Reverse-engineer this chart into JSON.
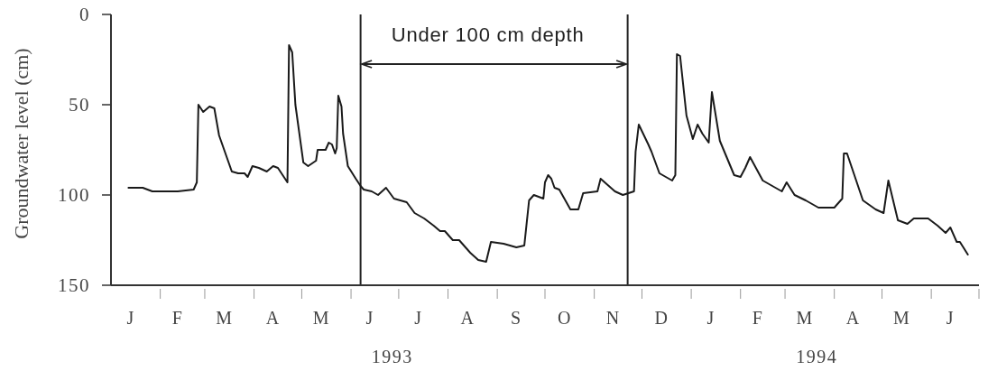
{
  "chart_data": {
    "type": "line",
    "ylabel": "Groundwater level (cm)",
    "x": [
      "1993-01-12",
      "1993-01-21",
      "1993-01-27",
      "1993-02-12",
      "1993-02-22",
      "1993-02-24",
      "1993-02-25",
      "1993-02-28",
      "1993-03-04",
      "1993-03-07",
      "1993-03-10",
      "1993-03-18",
      "1993-03-22",
      "1993-03-26",
      "1993-03-28",
      "1993-03-31",
      "1993-04-04",
      "1993-04-09",
      "1993-04-13",
      "1993-04-16",
      "1993-04-22",
      "1993-04-23",
      "1993-04-25",
      "1993-04-27",
      "1993-05-02",
      "1993-05-05",
      "1993-05-10",
      "1993-05-11",
      "1993-05-16",
      "1993-05-18",
      "1993-05-20",
      "1993-05-22",
      "1993-05-23",
      "1993-05-24",
      "1993-05-26",
      "1993-05-27",
      "1993-05-30",
      "1993-06-04",
      "1993-06-07",
      "1993-06-09",
      "1993-06-14",
      "1993-06-18",
      "1993-06-23",
      "1993-06-28",
      "1993-07-06",
      "1993-07-11",
      "1993-07-17",
      "1993-07-23",
      "1993-07-27",
      "1993-07-30",
      "1993-08-04",
      "1993-08-08",
      "1993-08-15",
      "1993-08-20",
      "1993-08-25",
      "1993-08-28",
      "1993-09-05",
      "1993-09-13",
      "1993-09-18",
      "1993-09-21",
      "1993-09-24",
      "1993-09-30",
      "1993-10-01",
      "1993-10-03",
      "1993-10-05",
      "1993-10-07",
      "1993-10-10",
      "1993-10-17",
      "1993-10-22",
      "1993-10-25",
      "1993-11-03",
      "1993-11-05",
      "1993-11-14",
      "1993-11-19",
      "1993-11-26",
      "1993-11-27",
      "1993-11-29",
      "1993-12-05",
      "1993-12-07",
      "1993-12-12",
      "1993-12-20",
      "1993-12-22",
      "1993-12-23",
      "1993-12-25",
      "1993-12-29",
      "1994-01-02",
      "1994-01-05",
      "1994-01-08",
      "1994-01-12",
      "1994-01-14",
      "1994-01-19",
      "1994-01-28",
      "1994-02-01",
      "1994-02-04",
      "1994-02-07",
      "1994-02-15",
      "1994-02-27",
      "1994-03-02",
      "1994-03-07",
      "1994-03-14",
      "1994-03-22",
      "1994-04-01",
      "1994-04-06",
      "1994-04-07",
      "1994-04-09",
      "1994-04-19",
      "1994-04-27",
      "1994-05-02",
      "1994-05-05",
      "1994-05-11",
      "1994-05-17",
      "1994-05-21",
      "1994-05-30",
      "1994-06-05",
      "1994-06-10",
      "1994-06-13",
      "1994-06-17",
      "1994-06-19",
      "1994-06-24"
    ],
    "values": [
      96,
      96,
      98,
      98,
      97,
      93,
      50,
      54,
      51,
      52,
      67,
      87,
      88,
      88,
      90,
      84,
      85,
      87,
      84,
      85,
      93,
      17,
      21,
      50,
      82,
      84,
      81,
      75,
      75,
      71,
      72,
      77,
      74,
      45,
      51,
      66,
      84,
      91,
      95,
      97,
      98,
      100,
      96,
      102,
      104,
      110,
      113,
      117,
      120,
      120,
      125,
      125,
      132,
      136,
      137,
      126,
      127,
      129,
      128,
      103,
      100,
      102,
      93,
      89,
      91,
      96,
      97,
      108,
      108,
      99,
      98,
      91,
      98,
      100,
      98,
      76,
      61,
      72,
      76,
      88,
      92,
      89,
      22,
      23,
      56,
      69,
      61,
      66,
      71,
      43,
      70,
      89,
      90,
      85,
      79,
      92,
      98,
      93,
      100,
      103,
      107,
      107,
      102,
      77,
      77,
      103,
      108,
      110,
      92,
      114,
      116,
      113,
      113,
      117,
      121,
      118,
      126,
      126,
      133
    ],
    "color": "#1a1a1a",
    "xlim": [
      "1993-01-01",
      "1994-07-01"
    ],
    "xticks": [
      {
        "value": "1993-02-01",
        "label": null
      },
      {
        "value": "1993-03-01",
        "label": null
      },
      {
        "value": "1993-04-01",
        "label": null
      },
      {
        "value": "1993-05-01",
        "label": null
      },
      {
        "value": "1993-06-01",
        "label": null
      },
      {
        "value": "1993-06-27",
        "label": "1993"
      },
      {
        "value": "1993-07-01",
        "label": null
      },
      {
        "value": "1993-08-01",
        "label": null
      },
      {
        "value": "1993-09-01",
        "label": null
      },
      {
        "value": "1993-10-01",
        "label": null
      },
      {
        "value": "1993-11-01",
        "label": null
      },
      {
        "value": "1993-12-01",
        "label": null
      },
      {
        "value": "1994-01-01",
        "label": null
      },
      {
        "value": "1994-02-01",
        "label": null
      },
      {
        "value": "1994-03-01",
        "label": null
      },
      {
        "value": "1994-03-21",
        "label": "1994"
      },
      {
        "value": "1994-04-01",
        "label": null
      },
      {
        "value": "1994-05-01",
        "label": null
      },
      {
        "value": "1994-06-01",
        "label": null
      },
      {
        "value": "1994-07-01",
        "label": null
      }
    ],
    "ylim": [
      150,
      0
    ],
    "yticks": [
      0,
      50,
      100,
      150
    ],
    "ref_lines": [
      {
        "axis": "x",
        "value": "1993-06-07",
        "color": "#222222"
      },
      {
        "axis": "x",
        "value": "1993-11-22",
        "color": "#222222"
      }
    ],
    "annotations": [
      "Under 100 cm depth",
      "J",
      "F",
      "M",
      "A",
      "M",
      "J",
      "J",
      "A",
      "S",
      "O",
      "N",
      "D",
      "J",
      "F",
      "M",
      "A",
      "M",
      "J"
    ]
  }
}
